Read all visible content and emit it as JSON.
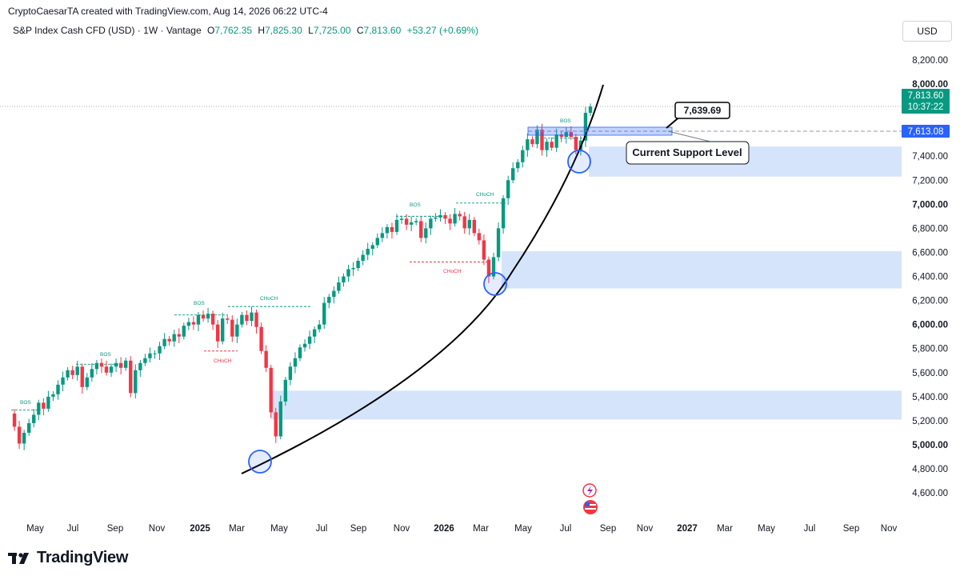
{
  "header": {
    "text": "CryptoCaesarTA created with TradingView.com, Aug 14, 2026 06:22 UTC-4"
  },
  "symbol": {
    "name": "S&P Index Cash CFD (USD) · 1W · Vantage",
    "open_label": "O",
    "open": "7,762.35",
    "high_label": "H",
    "high": "7,825.30",
    "low_label": "L",
    "low": "7,725.00",
    "close_label": "C",
    "close": "7,813.60",
    "change": "+53.27 (+0.69%)"
  },
  "currency": "USD",
  "brand": {
    "name": "TradingView"
  },
  "colors": {
    "up": "#089981",
    "down": "#f23645",
    "zone": "#d6e4fb",
    "current_price_bg": "#089981",
    "level_bg": "#2962ff"
  },
  "chart_data": {
    "type": "candlestick",
    "timeframe": "1W",
    "y_ticks": [
      "8,200.00",
      "8,000.00",
      "7,400.00",
      "7,200.00",
      "7,000.00",
      "6,800.00",
      "6,600.00",
      "6,400.00",
      "6,200.00",
      "6,000.00",
      "5,800.00",
      "5,600.00",
      "5,400.00",
      "5,200.00",
      "5,000.00",
      "4,800.00",
      "4,600.00"
    ],
    "y_bold_ticks": [
      "8,000.00",
      "7,000.00",
      "6,000.00",
      "5,000.00"
    ],
    "x_ticks": [
      "May",
      "Jul",
      "Sep",
      "Nov",
      "2025",
      "Mar",
      "May",
      "Jul",
      "Sep",
      "Nov",
      "2026",
      "Mar",
      "May",
      "Jul",
      "Sep",
      "Nov",
      "2027",
      "Mar",
      "May",
      "Jul",
      "Sep",
      "Nov"
    ],
    "x_bold_ticks": [
      "2025",
      "2026",
      "2027"
    ],
    "y_range": [
      4500,
      8300
    ],
    "current_price": {
      "value": "7,813.60",
      "countdown": "10:37:22"
    },
    "level_line": {
      "value": "7,613.08"
    },
    "callout": {
      "value": "7,639.69"
    },
    "support_label": "Current Support Level",
    "zones": [
      {
        "low": 7230,
        "high": 7480
      },
      {
        "low": 6300,
        "high": 6610
      },
      {
        "low": 5210,
        "high": 5450
      }
    ],
    "structure_labels": {
      "bos": "BOS",
      "choch": "CHoCH"
    },
    "close_path": [
      [
        0,
        5260
      ],
      [
        1,
        5150
      ],
      [
        2,
        5010
      ],
      [
        3,
        5100
      ],
      [
        4,
        5180
      ],
      [
        5,
        5250
      ],
      [
        6,
        5350
      ],
      [
        7,
        5300
      ],
      [
        8,
        5400
      ],
      [
        9,
        5420
      ],
      [
        10,
        5500
      ],
      [
        11,
        5560
      ],
      [
        12,
        5620
      ],
      [
        13,
        5580
      ],
      [
        14,
        5650
      ],
      [
        15,
        5480
      ],
      [
        16,
        5560
      ],
      [
        17,
        5630
      ],
      [
        18,
        5680
      ],
      [
        19,
        5650
      ],
      [
        20,
        5600
      ],
      [
        21,
        5650
      ],
      [
        22,
        5680
      ],
      [
        23,
        5640
      ],
      [
        24,
        5700
      ],
      [
        25,
        5430
      ],
      [
        26,
        5620
      ],
      [
        27,
        5680
      ],
      [
        28,
        5720
      ],
      [
        29,
        5760
      ],
      [
        30,
        5760
      ],
      [
        31,
        5820
      ],
      [
        32,
        5880
      ],
      [
        33,
        5860
      ],
      [
        34,
        5920
      ],
      [
        35,
        5900
      ],
      [
        36,
        5990
      ],
      [
        37,
        6020
      ],
      [
        38,
        6000
      ],
      [
        39,
        6080
      ],
      [
        40,
        6050
      ],
      [
        41,
        6090
      ],
      [
        42,
        6000
      ],
      [
        43,
        5860
      ],
      [
        44,
        6050
      ],
      [
        45,
        6040
      ],
      [
        46,
        5900
      ],
      [
        47,
        6000
      ],
      [
        48,
        6080
      ],
      [
        49,
        6030
      ],
      [
        50,
        6100
      ],
      [
        51,
        5980
      ],
      [
        52,
        5780
      ],
      [
        53,
        5640
      ],
      [
        54,
        5270
      ],
      [
        55,
        5070
      ],
      [
        56,
        5360
      ],
      [
        57,
        5540
      ],
      [
        58,
        5650
      ],
      [
        59,
        5720
      ],
      [
        60,
        5810
      ],
      [
        61,
        5840
      ],
      [
        62,
        5900
      ],
      [
        63,
        5960
      ],
      [
        64,
        6000
      ],
      [
        65,
        6180
      ],
      [
        66,
        6230
      ],
      [
        67,
        6280
      ],
      [
        68,
        6350
      ],
      [
        69,
        6400
      ],
      [
        70,
        6460
      ],
      [
        71,
        6470
      ],
      [
        72,
        6530
      ],
      [
        73,
        6580
      ],
      [
        74,
        6630
      ],
      [
        75,
        6660
      ],
      [
        76,
        6720
      ],
      [
        77,
        6760
      ],
      [
        78,
        6810
      ],
      [
        79,
        6770
      ],
      [
        80,
        6870
      ],
      [
        81,
        6880
      ],
      [
        82,
        6830
      ],
      [
        83,
        6850
      ],
      [
        84,
        6860
      ],
      [
        85,
        6720
      ],
      [
        86,
        6800
      ],
      [
        87,
        6880
      ],
      [
        88,
        6890
      ],
      [
        89,
        6910
      ],
      [
        90,
        6880
      ],
      [
        91,
        6840
      ],
      [
        92,
        6920
      ],
      [
        93,
        6900
      ],
      [
        94,
        6800
      ],
      [
        95,
        6870
      ],
      [
        96,
        6760
      ],
      [
        97,
        6700
      ],
      [
        98,
        6540
      ],
      [
        99,
        6400
      ],
      [
        100,
        6560
      ],
      [
        101,
        6800
      ],
      [
        102,
        7050
      ],
      [
        103,
        7200
      ],
      [
        104,
        7300
      ],
      [
        105,
        7350
      ],
      [
        106,
        7450
      ],
      [
        107,
        7540
      ],
      [
        108,
        7500
      ],
      [
        109,
        7620
      ],
      [
        110,
        7450
      ],
      [
        111,
        7520
      ],
      [
        112,
        7470
      ],
      [
        113,
        7580
      ],
      [
        114,
        7560
      ],
      [
        115,
        7600
      ],
      [
        116,
        7560
      ],
      [
        117,
        7450
      ],
      [
        118,
        7530
      ],
      [
        119,
        7760
      ],
      [
        120,
        7813
      ]
    ]
  }
}
